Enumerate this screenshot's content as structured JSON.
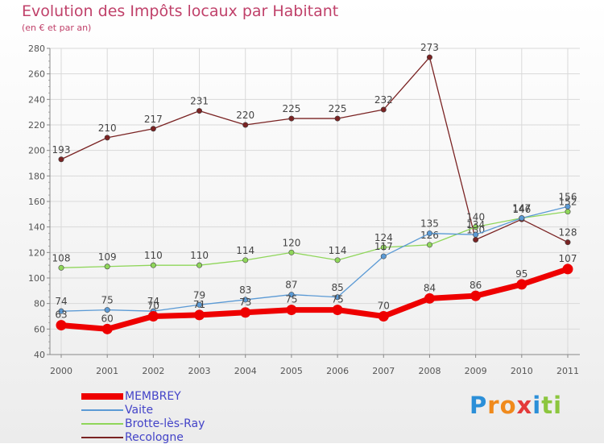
{
  "colors": {
    "title": "#c0416a",
    "legend_text": "#4343c8",
    "axis_text": "#555555",
    "grid": "#d9d9d9"
  },
  "chart_data": {
    "type": "line",
    "title": "Evolution des Impôts locaux par Habitant",
    "subtitle": "(en € et par an)",
    "xlabel": "",
    "ylabel": "",
    "ylim": [
      40,
      280
    ],
    "y_ticks": [
      "40",
      "60",
      "80",
      "100",
      "120",
      "140",
      "160",
      "180",
      "200",
      "220",
      "240",
      "260",
      "280"
    ],
    "categories": [
      "2000",
      "2001",
      "2002",
      "2003",
      "2004",
      "2005",
      "2006",
      "2007",
      "2008",
      "2009",
      "2010",
      "2011"
    ],
    "grid": true,
    "legend_position": "bottom-left",
    "series": [
      {
        "name": "Recologne",
        "color": "#7a2323",
        "values": [
          193,
          210,
          217,
          231,
          220,
          225,
          225,
          232,
          273,
          130,
          146,
          128
        ],
        "labels": [
          "193",
          "210",
          "217",
          "231",
          "220",
          "225",
          "225",
          "232",
          "273",
          "130",
          "146",
          "128"
        ]
      },
      {
        "name": "Brotte-lès-Ray",
        "color": "#8fd65a",
        "values": [
          108,
          109,
          110,
          110,
          114,
          120,
          114,
          124,
          126,
          140,
          147,
          152
        ],
        "labels": [
          "108",
          "109",
          "110",
          "110",
          "114",
          "120",
          "114",
          "124",
          "126",
          "140",
          "147",
          "152"
        ]
      },
      {
        "name": "Vaite",
        "color": "#5b9ad5",
        "values": [
          74,
          75,
          74,
          79,
          83,
          87,
          85,
          117,
          135,
          134,
          147,
          156
        ],
        "labels": [
          "74",
          "75",
          "74",
          "79",
          "83",
          "87",
          "85",
          "117",
          "135",
          "134",
          "147",
          "156"
        ]
      },
      {
        "name": "MEMBREY",
        "color": "#ee0000",
        "values": [
          63,
          60,
          70,
          71,
          73,
          75,
          75,
          70,
          84,
          86,
          95,
          107
        ],
        "labels": [
          "63",
          "60",
          "70",
          "71",
          "73",
          "75",
          "75",
          "70",
          "84",
          "86",
          "95",
          "107"
        ]
      }
    ],
    "legend": [
      "MEMBREY",
      "Vaite",
      "Brotte-lès-Ray",
      "Recologne"
    ]
  },
  "logo": {
    "letters": [
      "P",
      "r",
      "o",
      "x",
      "i",
      "t",
      "i"
    ],
    "colors": [
      "#2b8fd8",
      "#f08a1c",
      "#f08a1c",
      "#e43a3a",
      "#2b8fd8",
      "#8cc63e",
      "#8cc63e"
    ]
  }
}
